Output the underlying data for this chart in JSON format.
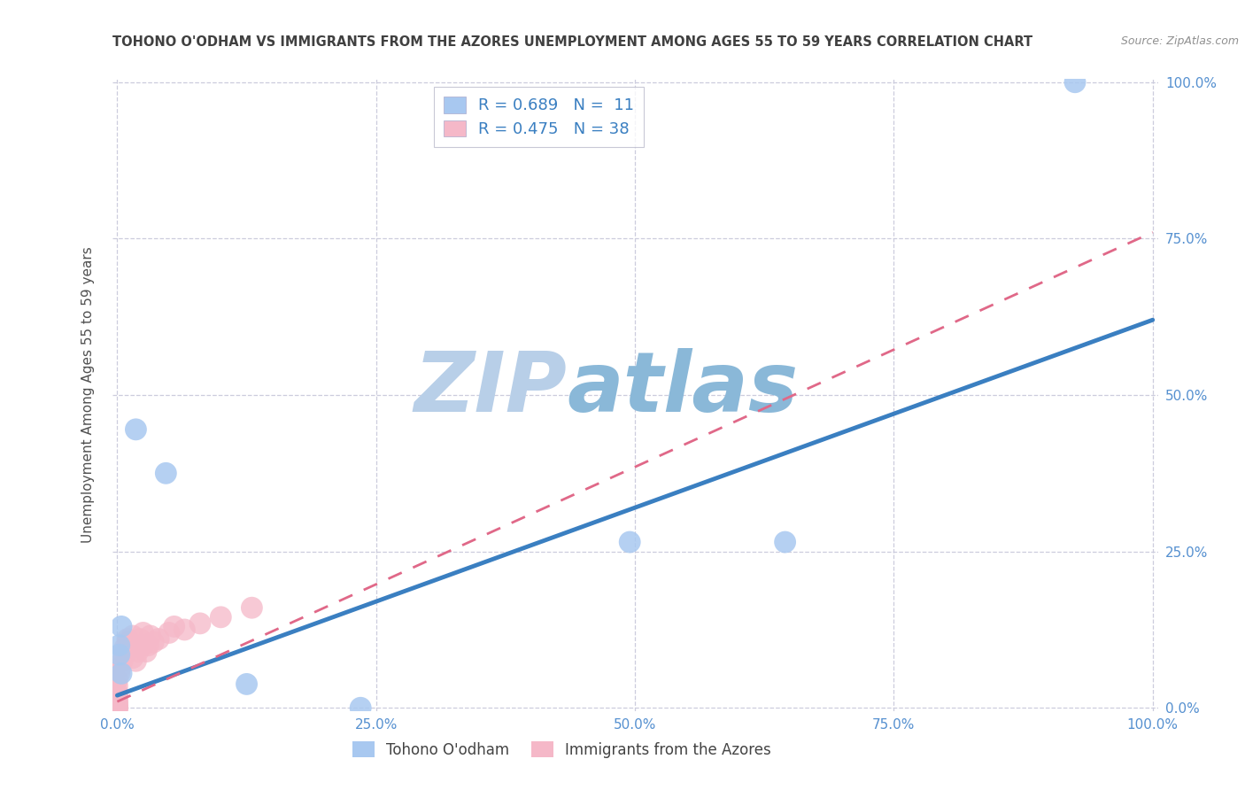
{
  "title": "TOHONO O'ODHAM VS IMMIGRANTS FROM THE AZORES UNEMPLOYMENT AMONG AGES 55 TO 59 YEARS CORRELATION CHART",
  "source": "Source: ZipAtlas.com",
  "ylabel": "Unemployment Among Ages 55 to 59 years",
  "xlim": [
    -0.005,
    1.005
  ],
  "ylim": [
    -0.005,
    1.005
  ],
  "tick_vals": [
    0.0,
    0.25,
    0.5,
    0.75,
    1.0
  ],
  "tick_labels": [
    "0.0%",
    "25.0%",
    "50.0%",
    "75.0%",
    "100.0%"
  ],
  "watermark_zip": "ZIP",
  "watermark_atlas": "atlas",
  "blue_R": 0.689,
  "blue_N": 11,
  "pink_R": 0.475,
  "pink_N": 38,
  "blue_dot_color": "#a8c8f0",
  "pink_dot_color": "#f5b8c8",
  "blue_line_color": "#3a7fc1",
  "pink_line_color": "#e06888",
  "tick_color": "#5590d0",
  "background_color": "#ffffff",
  "grid_color": "#ccccdd",
  "title_color": "#404040",
  "source_color": "#909090",
  "ylabel_color": "#505050",
  "legend_text_color": "#3a7fc1",
  "legend_label_color": "#444444",
  "blue_scatter_x": [
    0.018,
    0.047,
    0.002,
    0.004,
    0.125,
    0.495,
    0.645,
    0.925,
    0.235,
    0.002,
    0.004
  ],
  "blue_scatter_y": [
    0.445,
    0.375,
    0.085,
    0.055,
    0.038,
    0.265,
    0.265,
    1.0,
    0.0,
    0.1,
    0.13
  ],
  "pink_scatter_x": [
    0.0,
    0.0,
    0.0,
    0.0,
    0.0,
    0.0,
    0.0,
    0.0,
    0.0,
    0.0,
    0.0,
    0.0,
    0.002,
    0.003,
    0.005,
    0.007,
    0.007,
    0.01,
    0.01,
    0.012,
    0.015,
    0.015,
    0.018,
    0.02,
    0.022,
    0.025,
    0.025,
    0.028,
    0.03,
    0.032,
    0.035,
    0.04,
    0.05,
    0.055,
    0.065,
    0.08,
    0.1,
    0.13
  ],
  "pink_scatter_y": [
    0.0,
    0.0,
    0.0,
    0.0,
    0.005,
    0.008,
    0.01,
    0.015,
    0.02,
    0.025,
    0.035,
    0.045,
    0.055,
    0.065,
    0.075,
    0.085,
    0.095,
    0.105,
    0.11,
    0.095,
    0.08,
    0.115,
    0.075,
    0.09,
    0.11,
    0.1,
    0.12,
    0.09,
    0.1,
    0.115,
    0.105,
    0.11,
    0.12,
    0.13,
    0.125,
    0.135,
    0.145,
    0.16
  ],
  "blue_trendline_x": [
    0.0,
    1.0
  ],
  "blue_trendline_y": [
    0.02,
    0.62
  ],
  "pink_trendline_x": [
    0.0,
    1.0
  ],
  "pink_trendline_y": [
    0.01,
    0.76
  ]
}
